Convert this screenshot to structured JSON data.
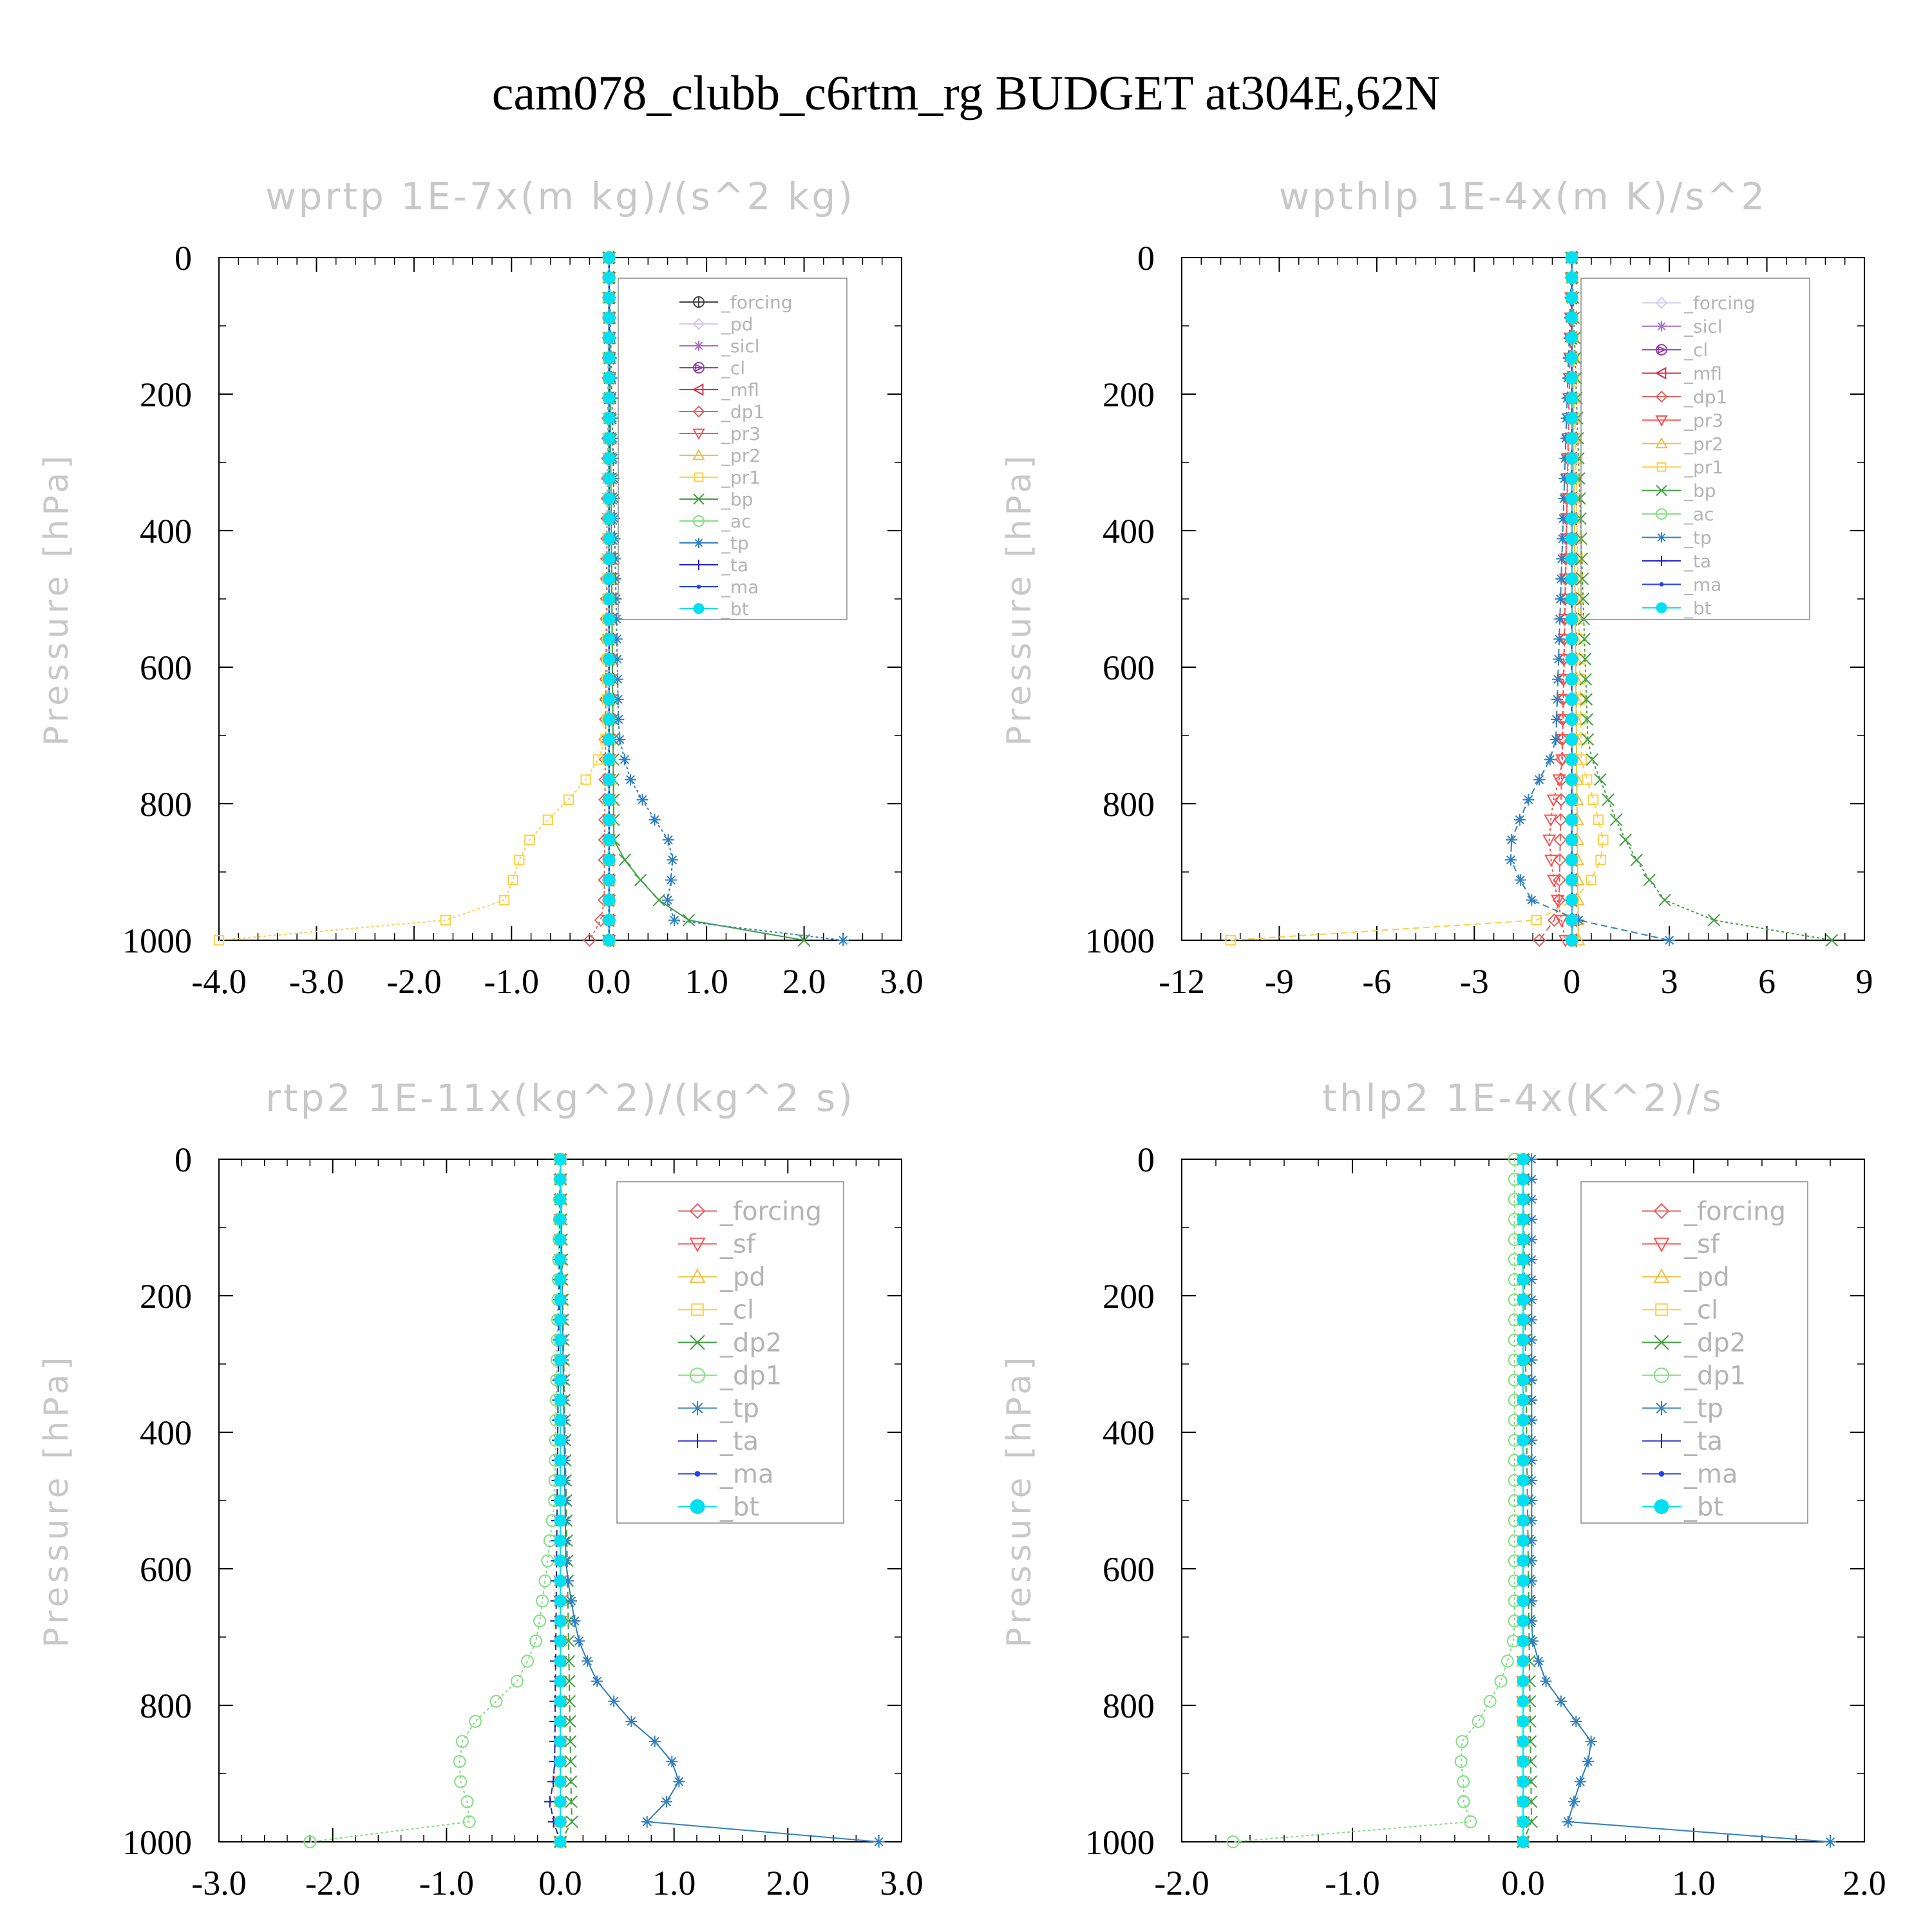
{
  "title": "cam078_clubb_c6rtm_rg  BUDGET at304E,62N",
  "chart_data": [
    {
      "type": "line",
      "title": "wprtp  1E-7x(m kg)/(s^2 kg)",
      "ylabel": "Pressure [hPa]",
      "xlim": [
        -4.0,
        3.0
      ],
      "ylim": [
        1000,
        0
      ],
      "xticks": [
        "-4.0",
        "-3.0",
        "-2.0",
        "-1.0",
        "0.0",
        "1.0",
        "2.0",
        "3.0"
      ],
      "xtick_values": [
        -4,
        -3,
        -2,
        -1,
        0,
        1,
        2,
        3
      ],
      "yticks": [
        "0",
        "200",
        "400",
        "600",
        "800",
        "1000"
      ],
      "ytick_values": [
        0,
        200,
        400,
        600,
        800,
        1000
      ],
      "legend_position": "top-right",
      "series": [
        {
          "name": "_forcing",
          "color": "#444444",
          "marker": "circle-plus",
          "p": [
            0,
            1000
          ],
          "x": [
            0,
            0
          ]
        },
        {
          "name": "_pd",
          "color": "#d8c8ee",
          "marker": "diamond",
          "p": [
            0,
            1000
          ],
          "x": [
            0,
            0
          ]
        },
        {
          "name": "_sicl",
          "color": "#a070c8",
          "marker": "star",
          "p": [
            0,
            1000
          ],
          "x": [
            0,
            0
          ]
        },
        {
          "name": "_cl",
          "color": "#9040a8",
          "marker": "circle-triangle",
          "p": [
            0,
            1000
          ],
          "x": [
            0,
            0
          ]
        },
        {
          "name": "_mfl",
          "color": "#d03050",
          "marker": "triangle-left",
          "p": [
            0,
            1000
          ],
          "x": [
            0,
            0
          ]
        },
        {
          "name": "_dp1",
          "color": "#e06060",
          "marker": "diamond",
          "p": [
            0,
            960,
            990,
            1000
          ],
          "x": [
            0,
            -0.05,
            -0.15,
            -0.2
          ]
        },
        {
          "name": "_pr3",
          "color": "#ff5050",
          "marker": "triangle-down",
          "p": [
            0,
            1000
          ],
          "x": [
            0,
            0
          ]
        },
        {
          "name": "_pr2",
          "color": "#f0c040",
          "marker": "triangle-up",
          "p": [
            0,
            1000
          ],
          "x": [
            0,
            0
          ]
        },
        {
          "name": "_pr1",
          "color": "#ffd040",
          "marker": "square",
          "p": [
            0,
            700,
            750,
            800,
            840,
            870,
            900,
            950,
            975,
            990,
            1000
          ],
          "x": [
            0,
            -0.02,
            -0.15,
            -0.45,
            -0.75,
            -0.9,
            -0.95,
            -1.1,
            -1.8,
            -3.5,
            -4.0
          ]
        },
        {
          "name": "_bp",
          "color": "#40a040",
          "marker": "x",
          "p": [
            0,
            860,
            900,
            940,
            970,
            990,
            1000
          ],
          "x": [
            0,
            0.05,
            0.25,
            0.5,
            0.8,
            1.4,
            2.0
          ]
        },
        {
          "name": "_ac",
          "color": "#80e080",
          "marker": "circle",
          "p": [
            0,
            1000
          ],
          "x": [
            0,
            0
          ]
        },
        {
          "name": "_tp",
          "color": "#3080c0",
          "marker": "asterisk",
          "p": [
            0,
            700,
            760,
            820,
            850,
            870,
            900,
            940,
            970,
            990,
            995
          ],
          "x": [
            0,
            0.1,
            0.2,
            0.45,
            0.6,
            0.65,
            0.65,
            0.6,
            0.65,
            1.3,
            2.4
          ]
        },
        {
          "name": "_ta",
          "color": "#2020c0",
          "marker": "plus",
          "p": [
            0,
            1000
          ],
          "x": [
            0,
            0
          ]
        },
        {
          "name": "_ma",
          "color": "#2040ff",
          "marker": "dot",
          "p": [
            0,
            1000
          ],
          "x": [
            0,
            0
          ]
        },
        {
          "name": "_bt",
          "color": "#00e0f0",
          "marker": "filled-circle",
          "p": [
            0,
            1000
          ],
          "x": [
            0,
            0
          ]
        }
      ]
    },
    {
      "type": "line",
      "title": "wpthlp  1E-4x(m K)/s^2",
      "ylabel": "Pressure [hPa]",
      "xlim": [
        -12,
        9
      ],
      "ylim": [
        1000,
        0
      ],
      "xticks": [
        "-12",
        "-9",
        "-6",
        "-3",
        "0",
        "3",
        "6",
        "9"
      ],
      "xtick_values": [
        -12,
        -9,
        -6,
        -3,
        0,
        3,
        6,
        9
      ],
      "yticks": [
        "0",
        "200",
        "400",
        "600",
        "800",
        "1000"
      ],
      "ytick_values": [
        0,
        200,
        400,
        600,
        800,
        1000
      ],
      "legend_position": "top-right",
      "series": [
        {
          "name": "_forcing",
          "color": "#d8c8ee",
          "marker": "diamond",
          "p": [
            0,
            1000
          ],
          "x": [
            0,
            0
          ]
        },
        {
          "name": "_sicl",
          "color": "#a070c8",
          "marker": "star",
          "p": [
            0,
            1000
          ],
          "x": [
            0,
            0
          ]
        },
        {
          "name": "_cl",
          "color": "#9040a8",
          "marker": "circle-triangle",
          "p": [
            0,
            1000
          ],
          "x": [
            0,
            0
          ]
        },
        {
          "name": "_mfl",
          "color": "#d03050",
          "marker": "triangle-left",
          "p": [
            0,
            1000
          ],
          "x": [
            0,
            0
          ]
        },
        {
          "name": "_dp1",
          "color": "#e06060",
          "marker": "diamond",
          "p": [
            0,
            960,
            990,
            1000
          ],
          "x": [
            0,
            -0.4,
            -0.8,
            -1.0
          ]
        },
        {
          "name": "_pr3",
          "color": "#ff5050",
          "marker": "triangle-down",
          "p": [
            0,
            750,
            800,
            850,
            900,
            950,
            1000
          ],
          "x": [
            0,
            -0.3,
            -0.6,
            -0.7,
            -0.6,
            -0.4,
            -0.2
          ]
        },
        {
          "name": "_pr2",
          "color": "#f0c040",
          "marker": "triangle-up",
          "p": [
            0,
            1000
          ],
          "x": [
            0,
            0.2
          ]
        },
        {
          "name": "_pr1",
          "color": "#ffd040",
          "marker": "square",
          "p": [
            0,
            740,
            800,
            860,
            900,
            940,
            970,
            990,
            1000
          ],
          "x": [
            0,
            0.3,
            0.7,
            1.0,
            0.8,
            0.1,
            -1.0,
            -4.0,
            -10.5
          ]
        },
        {
          "name": "_bp",
          "color": "#40a040",
          "marker": "x",
          "p": [
            0,
            720,
            780,
            840,
            900,
            950,
            980,
            995
          ],
          "x": [
            0,
            0.5,
            1.0,
            1.5,
            2.2,
            3.0,
            5.0,
            8.0
          ]
        },
        {
          "name": "_ac",
          "color": "#80e080",
          "marker": "circle",
          "p": [
            0,
            1000
          ],
          "x": [
            0,
            0
          ]
        },
        {
          "name": "_tp",
          "color": "#3080c0",
          "marker": "asterisk",
          "p": [
            0,
            720,
            800,
            870,
            920,
            960,
            995
          ],
          "x": [
            0,
            -0.5,
            -1.4,
            -2.0,
            -1.5,
            -1.0,
            3.0
          ]
        },
        {
          "name": "_ta",
          "color": "#2020c0",
          "marker": "plus",
          "p": [
            0,
            1000
          ],
          "x": [
            0,
            0
          ]
        },
        {
          "name": "_ma",
          "color": "#2040ff",
          "marker": "dot",
          "p": [
            0,
            1000
          ],
          "x": [
            0,
            0
          ]
        },
        {
          "name": "_bt",
          "color": "#00e0f0",
          "marker": "filled-circle",
          "p": [
            0,
            1000
          ],
          "x": [
            0,
            0
          ]
        }
      ]
    },
    {
      "type": "line",
      "title": "rtp2  1E-11x(kg^2)/(kg^2 s)",
      "ylabel": "Pressure [hPa]",
      "xlim": [
        -3.0,
        3.0
      ],
      "ylim": [
        1000,
        0
      ],
      "xticks": [
        "-3.0",
        "-2.0",
        "-1.0",
        "0.0",
        "1.0",
        "2.0",
        "3.0"
      ],
      "xtick_values": [
        -3,
        -2,
        -1,
        0,
        1,
        2,
        3
      ],
      "yticks": [
        "0",
        "200",
        "400",
        "600",
        "800",
        "1000"
      ],
      "ytick_values": [
        0,
        200,
        400,
        600,
        800,
        1000
      ],
      "legend_position": "top-right",
      "series": [
        {
          "name": "_forcing",
          "color": "#e06060",
          "marker": "diamond",
          "p": [
            0,
            1000
          ],
          "x": [
            0,
            0
          ]
        },
        {
          "name": "_sf",
          "color": "#ff5050",
          "marker": "triangle-down",
          "p": [
            0,
            1000
          ],
          "x": [
            0,
            0
          ]
        },
        {
          "name": "_pd",
          "color": "#f0c040",
          "marker": "triangle-up",
          "p": [
            0,
            1000
          ],
          "x": [
            0,
            0
          ]
        },
        {
          "name": "_cl",
          "color": "#ffd040",
          "marker": "square",
          "p": [
            0,
            1000
          ],
          "x": [
            0,
            0
          ]
        },
        {
          "name": "_dp2",
          "color": "#40a040",
          "marker": "x",
          "p": [
            0,
            970,
            990,
            1000
          ],
          "x": [
            0,
            0.1,
            0.2,
            0
          ]
        },
        {
          "name": "_dp1",
          "color": "#80e080",
          "marker": "circle",
          "p": [
            0,
            500,
            600,
            700,
            760,
            800,
            840,
            900,
            950,
            980,
            995
          ],
          "x": [
            0,
            -0.05,
            -0.12,
            -0.2,
            -0.35,
            -0.6,
            -0.85,
            -0.9,
            -0.8,
            -0.8,
            -2.2
          ]
        },
        {
          "name": "_tp",
          "color": "#3080c0",
          "marker": "asterisk",
          "p": [
            0,
            600,
            700,
            760,
            820,
            870,
            910,
            950,
            980,
            990,
            995
          ],
          "x": [
            0,
            0.05,
            0.15,
            0.3,
            0.6,
            0.95,
            1.05,
            0.9,
            0.7,
            1.0,
            2.8
          ]
        },
        {
          "name": "_ta",
          "color": "#2020c0",
          "marker": "plus",
          "p": [
            0,
            900,
            950,
            1000
          ],
          "x": [
            0,
            -0.05,
            -0.1,
            0
          ]
        },
        {
          "name": "_ma",
          "color": "#2040ff",
          "marker": "dot",
          "p": [
            0,
            1000
          ],
          "x": [
            0,
            0
          ]
        },
        {
          "name": "_bt",
          "color": "#00e0f0",
          "marker": "filled-circle",
          "p": [
            0,
            1000
          ],
          "x": [
            0,
            0
          ]
        }
      ]
    },
    {
      "type": "line",
      "title": "thlp2  1E-4x(K^2)/s",
      "ylabel": "Pressure [hPa]",
      "xlim": [
        -2.0,
        2.0
      ],
      "ylim": [
        1000,
        0
      ],
      "xticks": [
        "-2.0",
        "-1.0",
        "0.0",
        "1.0",
        "2.0"
      ],
      "xtick_values": [
        -2,
        -1,
        0,
        1,
        2
      ],
      "yticks": [
        "0",
        "200",
        "400",
        "600",
        "800",
        "1000"
      ],
      "ytick_values": [
        0,
        200,
        400,
        600,
        800,
        1000
      ],
      "legend_position": "top-right",
      "series": [
        {
          "name": "_forcing",
          "color": "#e06060",
          "marker": "diamond",
          "p": [
            0,
            1000
          ],
          "x": [
            0,
            0
          ]
        },
        {
          "name": "_sf",
          "color": "#ff5050",
          "marker": "triangle-down",
          "p": [
            0,
            1000
          ],
          "x": [
            0,
            0
          ]
        },
        {
          "name": "_pd",
          "color": "#f0c040",
          "marker": "triangle-up",
          "p": [
            0,
            1000
          ],
          "x": [
            0,
            0
          ]
        },
        {
          "name": "_cl",
          "color": "#ffd040",
          "marker": "square",
          "p": [
            0,
            1000
          ],
          "x": [
            0,
            0
          ]
        },
        {
          "name": "_dp2",
          "color": "#40a040",
          "marker": "x",
          "p": [
            0,
            980,
            1000
          ],
          "x": [
            0,
            0.05,
            0
          ]
        },
        {
          "name": "_dp1",
          "color": "#80e080",
          "marker": "circle",
          "p": [
            0,
            700,
            760,
            820,
            860,
            900,
            940,
            970,
            985,
            995
          ],
          "x": [
            -0.05,
            -0.05,
            -0.12,
            -0.25,
            -0.38,
            -0.35,
            -0.35,
            -0.3,
            -0.5,
            -1.7
          ]
        },
        {
          "name": "_tp",
          "color": "#3080c0",
          "marker": "asterisk",
          "p": [
            0,
            700,
            760,
            820,
            860,
            900,
            940,
            970,
            985,
            995
          ],
          "x": [
            0.05,
            0.05,
            0.12,
            0.3,
            0.42,
            0.35,
            0.3,
            0.25,
            0.6,
            1.8
          ]
        },
        {
          "name": "_ta",
          "color": "#2020c0",
          "marker": "plus",
          "p": [
            0,
            1000
          ],
          "x": [
            0,
            0
          ]
        },
        {
          "name": "_ma",
          "color": "#2040ff",
          "marker": "dot",
          "p": [
            0,
            1000
          ],
          "x": [
            0,
            0
          ]
        },
        {
          "name": "_bt",
          "color": "#00e0f0",
          "marker": "filled-circle",
          "p": [
            0,
            1000
          ],
          "x": [
            0,
            0
          ]
        }
      ]
    }
  ]
}
